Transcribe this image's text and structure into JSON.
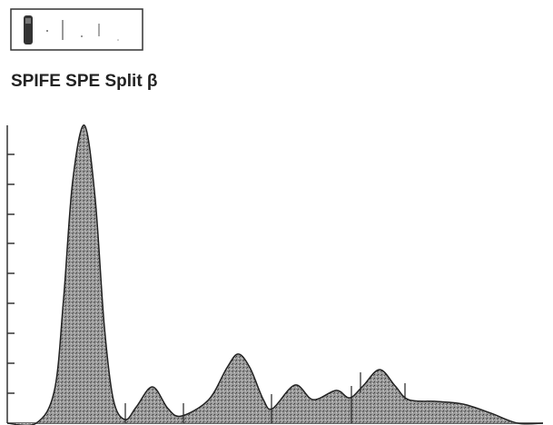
{
  "chart_data": {
    "type": "area",
    "title": "SPIFE SPE Split β",
    "x": [
      0,
      5.4,
      8.8,
      10.5,
      12.2,
      14.4,
      16.4,
      18.1,
      19.8,
      22,
      24.1,
      27.1,
      30,
      32.5,
      37.6,
      41,
      43.1,
      45.3,
      47.8,
      49.5,
      53.7,
      57.1,
      61.4,
      63.9,
      66.4,
      69.5,
      72.4,
      74.9,
      80,
      85.1,
      90.2,
      95.3,
      100
    ],
    "values": [
      0,
      0,
      11,
      41.5,
      81.1,
      100,
      75.6,
      32.9,
      7.9,
      1.2,
      5.5,
      12.2,
      4.9,
      2.4,
      7.9,
      18.6,
      23.2,
      18.6,
      7.9,
      4.9,
      12.8,
      7.9,
      11,
      8.5,
      12.5,
      18,
      12.5,
      7.9,
      7.3,
      6.4,
      3.4,
      0,
      0
    ],
    "xlim": [
      0,
      100
    ],
    "ylim": [
      0,
      100
    ],
    "color": "#8a8a8a"
  }
}
